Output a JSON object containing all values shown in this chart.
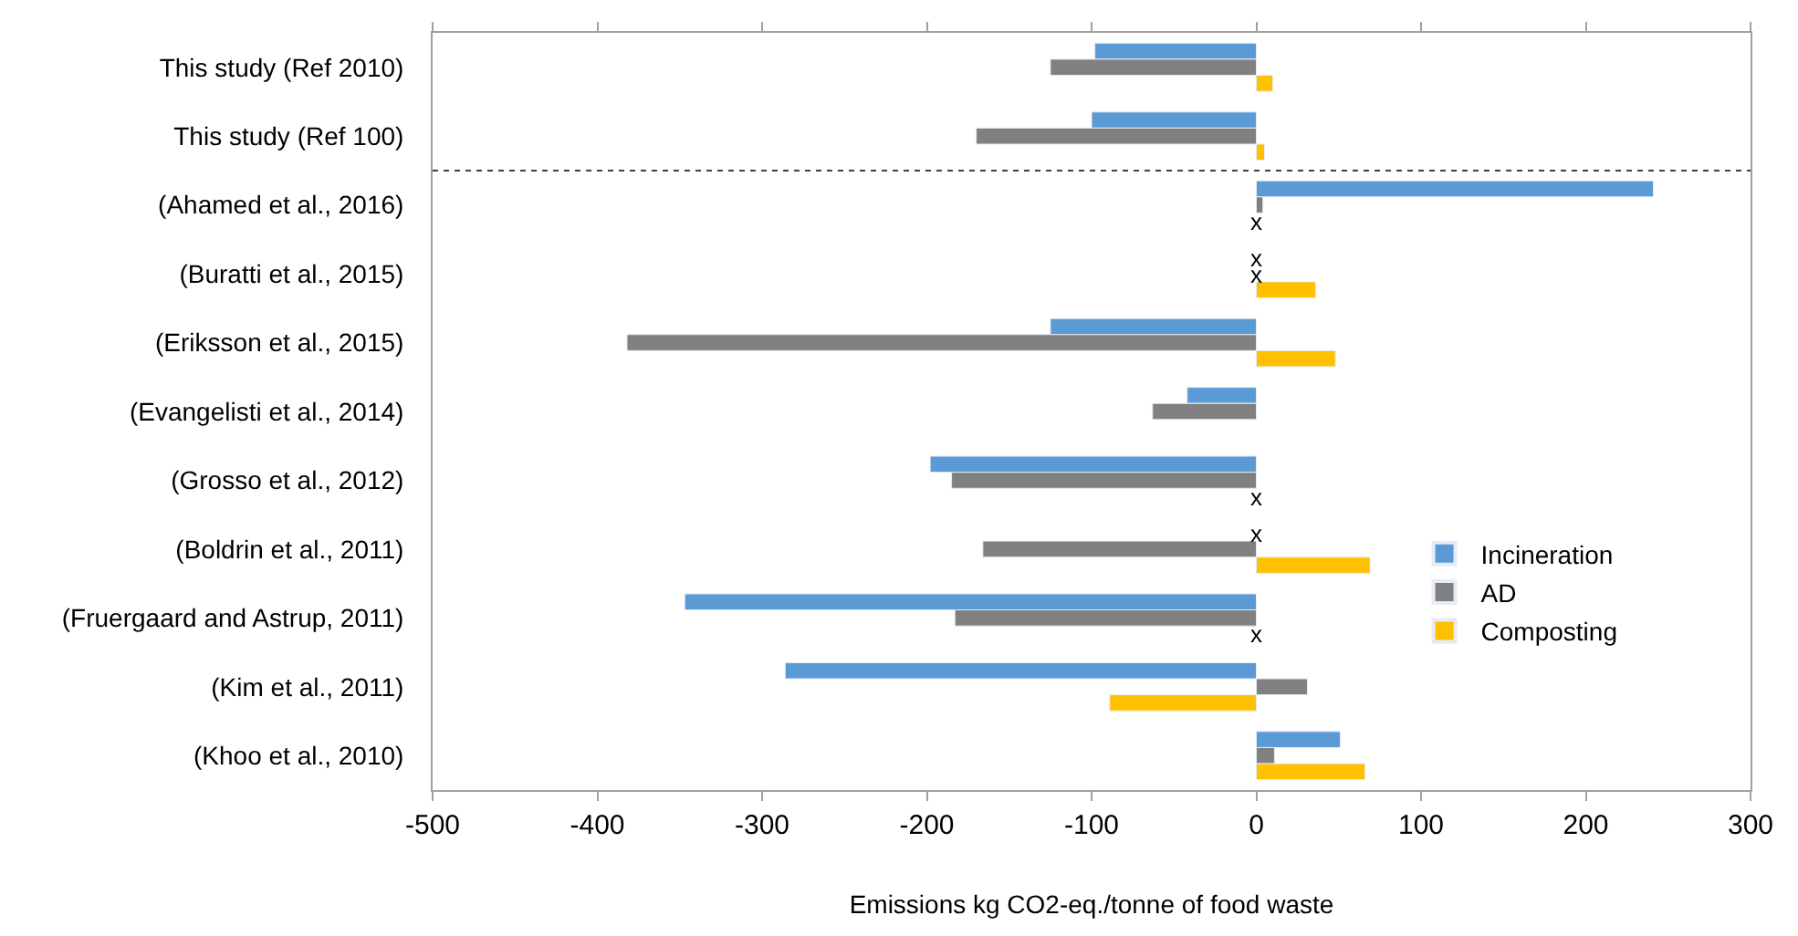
{
  "chart_data": {
    "type": "bar",
    "orientation": "horizontal",
    "xlabel": "Emissions kg CO2-eq./tonne of food waste",
    "categories": [
      "This study (Ref 2010)",
      "This study (Ref 100)",
      "(Ahamed et al., 2016)",
      "(Buratti et al., 2015)",
      "(Eriksson et al., 2015)",
      "(Evangelisti et al., 2014)",
      "(Grosso et al., 2012)",
      "(Boldrin et al., 2011)",
      "(Fruergaard and Astrup, 2011)",
      "(Kim et al., 2011)",
      "(Khoo et al., 2010)"
    ],
    "series": [
      {
        "name": "Incineration",
        "color": "#5b9bd5",
        "values": [
          -98,
          -100,
          241,
          null,
          -125,
          -42,
          -198,
          null,
          -347,
          -286,
          51
        ]
      },
      {
        "name": "AD",
        "color": "#808080",
        "values": [
          -125,
          -170,
          4,
          null,
          -382,
          -63,
          -185,
          -166,
          -183,
          31,
          11
        ]
      },
      {
        "name": "Composting",
        "color": "#ffc000",
        "values": [
          10,
          5,
          null,
          36,
          48,
          null,
          null,
          69,
          null,
          -89,
          66
        ]
      }
    ],
    "xlim": [
      -500,
      300
    ],
    "xticks": [
      -500,
      -400,
      -300,
      -200,
      -100,
      0,
      100,
      200,
      300
    ],
    "legend": "right",
    "annotations": [
      {
        "text": "x",
        "y": "(Ahamed et al., 2016)"
      },
      {
        "text": "x",
        "y": "(Buratti et al., 2015)"
      },
      {
        "text": "x",
        "y": "(Buratti et al., 2015)"
      },
      {
        "text": "x",
        "y": "(Grosso et al., 2012)"
      },
      {
        "text": "x",
        "y": "(Boldrin et al., 2011)"
      },
      {
        "text": "x",
        "y": "(Fruergaard and Astrup, 2011)"
      }
    ]
  }
}
